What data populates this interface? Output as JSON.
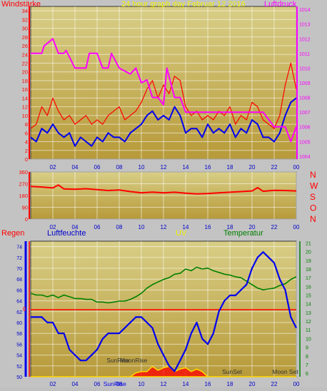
{
  "colors": {
    "outer_bg": "#c3c3c3",
    "plot_bg_top": "#d8ce86",
    "plot_bg_bottom": "#b79a3a",
    "grid": "#ffffff",
    "red": "#ff0000",
    "blue": "#0000ee",
    "magenta": "#ff00ff",
    "green": "#008000",
    "yellow": "#ffd800",
    "axis_blue": "#0000cc",
    "title_yellow": "#f0f000"
  },
  "chart_data": [
    {
      "type": "line",
      "title": "24 hour graph day   Februar 12 2016",
      "left_label": "Windstärke",
      "right_label": "Luftdruck",
      "x_ticks": [
        "02",
        "04",
        "06",
        "08",
        "10",
        "12",
        "14",
        "16",
        "18",
        "20",
        "22",
        "00"
      ],
      "x_range": [
        0,
        24
      ],
      "y_left_ticks": [
        "0",
        "2",
        "4",
        "6",
        "8",
        "10",
        "12",
        "14",
        "16",
        "18",
        "20",
        "22",
        "24",
        "26",
        "28",
        "30",
        "32",
        "34"
      ],
      "y_left_range": [
        0,
        35
      ],
      "y_right_ticks": [
        "1004",
        "1005",
        "1006",
        "1007",
        "1008",
        "1009",
        "1010",
        "1011",
        "1012",
        "1013",
        "1014"
      ],
      "y_right_range": [
        1003.8,
        1014.2
      ],
      "series": [
        {
          "color": "red",
          "axis": "left",
          "x": [
            0,
            0.5,
            1,
            1.5,
            2,
            2.5,
            3,
            3.5,
            4,
            4.5,
            5,
            5.5,
            6,
            6.5,
            7,
            7.5,
            8,
            8.5,
            9,
            9.5,
            10,
            10.5,
            11,
            11.5,
            12,
            12.5,
            13,
            13.5,
            14,
            14.5,
            15,
            15.5,
            16,
            16.5,
            17,
            17.5,
            18,
            18.5,
            19,
            19.5,
            20,
            20.5,
            21,
            21.5,
            22,
            22.5,
            23,
            23.5,
            24
          ],
          "y": [
            7,
            8,
            12,
            10,
            14,
            11,
            9,
            10,
            8,
            9,
            10,
            8,
            9,
            8,
            10,
            11,
            12,
            9,
            10,
            11,
            13,
            16,
            18,
            14,
            17,
            15,
            19,
            18,
            12,
            10,
            11,
            9,
            10,
            9,
            11,
            10,
            12,
            8,
            10,
            9,
            13,
            12,
            9,
            8,
            7,
            10,
            17,
            22,
            16
          ]
        },
        {
          "color": "blue",
          "axis": "left",
          "x": [
            0,
            0.5,
            1,
            1.5,
            2,
            2.5,
            3,
            3.5,
            4,
            4.5,
            5,
            5.5,
            6,
            6.5,
            7,
            7.5,
            8,
            8.5,
            9,
            9.5,
            10,
            10.5,
            11,
            11.5,
            12,
            12.5,
            13,
            13.5,
            14,
            14.5,
            15,
            15.5,
            16,
            16.5,
            17,
            17.5,
            18,
            18.5,
            19,
            19.5,
            20,
            20.5,
            21,
            21.5,
            22,
            22.5,
            23,
            23.5,
            24
          ],
          "y": [
            5,
            4,
            7,
            6,
            8,
            6,
            5,
            6,
            3,
            5,
            4,
            3,
            5,
            4,
            6,
            5,
            5,
            4,
            6,
            7,
            8,
            10,
            11,
            9,
            10,
            9,
            12,
            10,
            6,
            7,
            7,
            5,
            8,
            6,
            7,
            6,
            8,
            5,
            7,
            6,
            9,
            8,
            5,
            5,
            4,
            6,
            10,
            13,
            14
          ]
        },
        {
          "color": "magenta",
          "axis": "right",
          "x": [
            0,
            1,
            1.2,
            2,
            2.5,
            3,
            3.2,
            4,
            5,
            5.3,
            6,
            6.5,
            7,
            7.3,
            8,
            9,
            9.5,
            10,
            10.5,
            11,
            11.5,
            12,
            12.3,
            13,
            13.5,
            14,
            15,
            16,
            17,
            18,
            19,
            20,
            21,
            22,
            23,
            23.5,
            24
          ],
          "y": [
            1011,
            1011,
            1011.5,
            1012,
            1011,
            1011,
            1011.2,
            1010,
            1010,
            1011,
            1011,
            1010,
            1010,
            1011,
            1010,
            1009.6,
            1010,
            1009,
            1009.2,
            1008,
            1008,
            1007.5,
            1010,
            1008,
            1008,
            1007,
            1007,
            1007,
            1007,
            1007,
            1007,
            1007,
            1007,
            1006,
            1006,
            1005,
            1006
          ]
        }
      ]
    },
    {
      "type": "line",
      "x_ticks": [
        "02",
        "04",
        "06",
        "08",
        "10",
        "12",
        "14",
        "16",
        "18",
        "20",
        "22",
        "00"
      ],
      "x_range": [
        0,
        24
      ],
      "y_left_ticks": [
        "0",
        "90",
        "180",
        "270",
        "360"
      ],
      "y_left_range": [
        0,
        360
      ],
      "y_right_ticks": [
        "N",
        "W",
        "S",
        "O",
        "N"
      ],
      "series": [
        {
          "color": "red",
          "axis": "left",
          "x": [
            0,
            1,
            2,
            2.5,
            3,
            4,
            5,
            6,
            7,
            8,
            9,
            10,
            11,
            12,
            13,
            14,
            15,
            16,
            17,
            18,
            19,
            20,
            20.5,
            21,
            22,
            23,
            24
          ],
          "y": [
            250,
            245,
            238,
            260,
            230,
            228,
            232,
            225,
            218,
            222,
            210,
            200,
            206,
            200,
            205,
            198,
            192,
            195,
            200,
            205,
            210,
            215,
            240,
            212,
            220,
            218,
            215
          ]
        }
      ]
    },
    {
      "type": "line",
      "labels": {
        "rain": "Regen",
        "humidity": "Luftfeuchte",
        "uv": "UV",
        "temperature": "Temperatur"
      },
      "x_ticks": [
        "02",
        "04",
        "06",
        "08",
        "10",
        "12",
        "14",
        "16",
        "18",
        "20",
        "22",
        "00"
      ],
      "x_range": [
        0,
        24
      ],
      "y_humidity_ticks": [
        "50",
        "52",
        "54",
        "56",
        "58",
        "60",
        "62",
        "64",
        "66",
        "68",
        "70",
        "72",
        "74"
      ],
      "y_humidity_range": [
        50,
        75
      ],
      "y_temperature_ticks": [
        "6",
        "7",
        "8",
        "9",
        "10",
        "11",
        "12",
        "13",
        "14",
        "15",
        "16",
        "17",
        "18",
        "19",
        "20",
        "21"
      ],
      "y_temperature_range": [
        5.6,
        21.2
      ],
      "rain_zero_label": "0",
      "rain_value": 0,
      "annotations": [
        {
          "text": "SunRise",
          "x": 7.9
        },
        {
          "text": "SunSet",
          "x": 18.2
        },
        {
          "text": "MoonRise",
          "x": 9.3
        },
        {
          "text": "Moon Set",
          "x": 23
        },
        {
          "text": "SunRise",
          "x": 7.6
        }
      ],
      "series": [
        {
          "name": "Temperatur",
          "color": "green",
          "axis": "temperature",
          "x": [
            0,
            0.5,
            1,
            1.5,
            2,
            2.5,
            3,
            3.5,
            4,
            4.5,
            5,
            5.5,
            6,
            6.5,
            7,
            7.5,
            8,
            8.5,
            9,
            9.5,
            10,
            10.5,
            11,
            11.5,
            12,
            12.5,
            13,
            13.5,
            14,
            14.5,
            15,
            15.5,
            16,
            16.5,
            17,
            17.5,
            18,
            18.5,
            19,
            19.5,
            20,
            20.5,
            21,
            21.5,
            22,
            22.5,
            23,
            23.5,
            24
          ],
          "y": [
            15.2,
            15,
            15,
            14.8,
            15,
            14.7,
            15,
            14.8,
            14.6,
            14.6,
            14.5,
            14.5,
            14.2,
            14.2,
            14.1,
            14.2,
            14.3,
            14.3,
            14.5,
            14.8,
            15.2,
            15.8,
            16.2,
            16.5,
            16.8,
            17,
            17.4,
            17.5,
            18,
            17.8,
            18.2,
            18,
            18.1,
            17.8,
            17.6,
            17.4,
            17.3,
            17.1,
            17,
            16.6,
            16.2,
            15.8,
            15.6,
            15.7,
            15.8,
            16.1,
            16.3,
            16.8,
            17.1
          ]
        },
        {
          "name": "Luftfeuchte",
          "color": "blue",
          "axis": "humidity",
          "x": [
            0,
            0.5,
            1,
            1.5,
            2,
            2.5,
            3,
            3.5,
            4,
            4.5,
            5,
            5.5,
            6,
            6.5,
            7,
            7.5,
            8,
            8.5,
            9,
            9.5,
            10,
            10.5,
            11,
            11.5,
            12,
            12.5,
            13,
            13.5,
            14,
            14.5,
            15,
            15.5,
            16,
            16.5,
            17,
            17.5,
            18,
            18.5,
            19,
            19.5,
            20,
            20.5,
            21,
            21.5,
            22,
            22.5,
            23,
            23.5,
            24
          ],
          "y": [
            61,
            61,
            61,
            60,
            60,
            58,
            58,
            55,
            54,
            53,
            53,
            54,
            55,
            57,
            58,
            58,
            58,
            59,
            60,
            61,
            61,
            60,
            59,
            56,
            54,
            52,
            51,
            53,
            55,
            58,
            60,
            57,
            56,
            58,
            62,
            64,
            65,
            65,
            66,
            67,
            70,
            72,
            73,
            72,
            71,
            68,
            66,
            61,
            59
          ]
        },
        {
          "name": "UV",
          "color": "yellow",
          "axis": "uv",
          "x": [
            0,
            9,
            9.5,
            10,
            10.5,
            11,
            11.5,
            12,
            12.5,
            13,
            13.5,
            14,
            14.5,
            15,
            15.5,
            16,
            24
          ],
          "y": [
            0,
            0,
            0.3,
            0.4,
            0.4,
            0.8,
            0.5,
            0.7,
            0.8,
            0.4,
            0.6,
            0.7,
            0.4,
            0.6,
            0.4,
            0,
            0
          ]
        }
      ]
    }
  ]
}
